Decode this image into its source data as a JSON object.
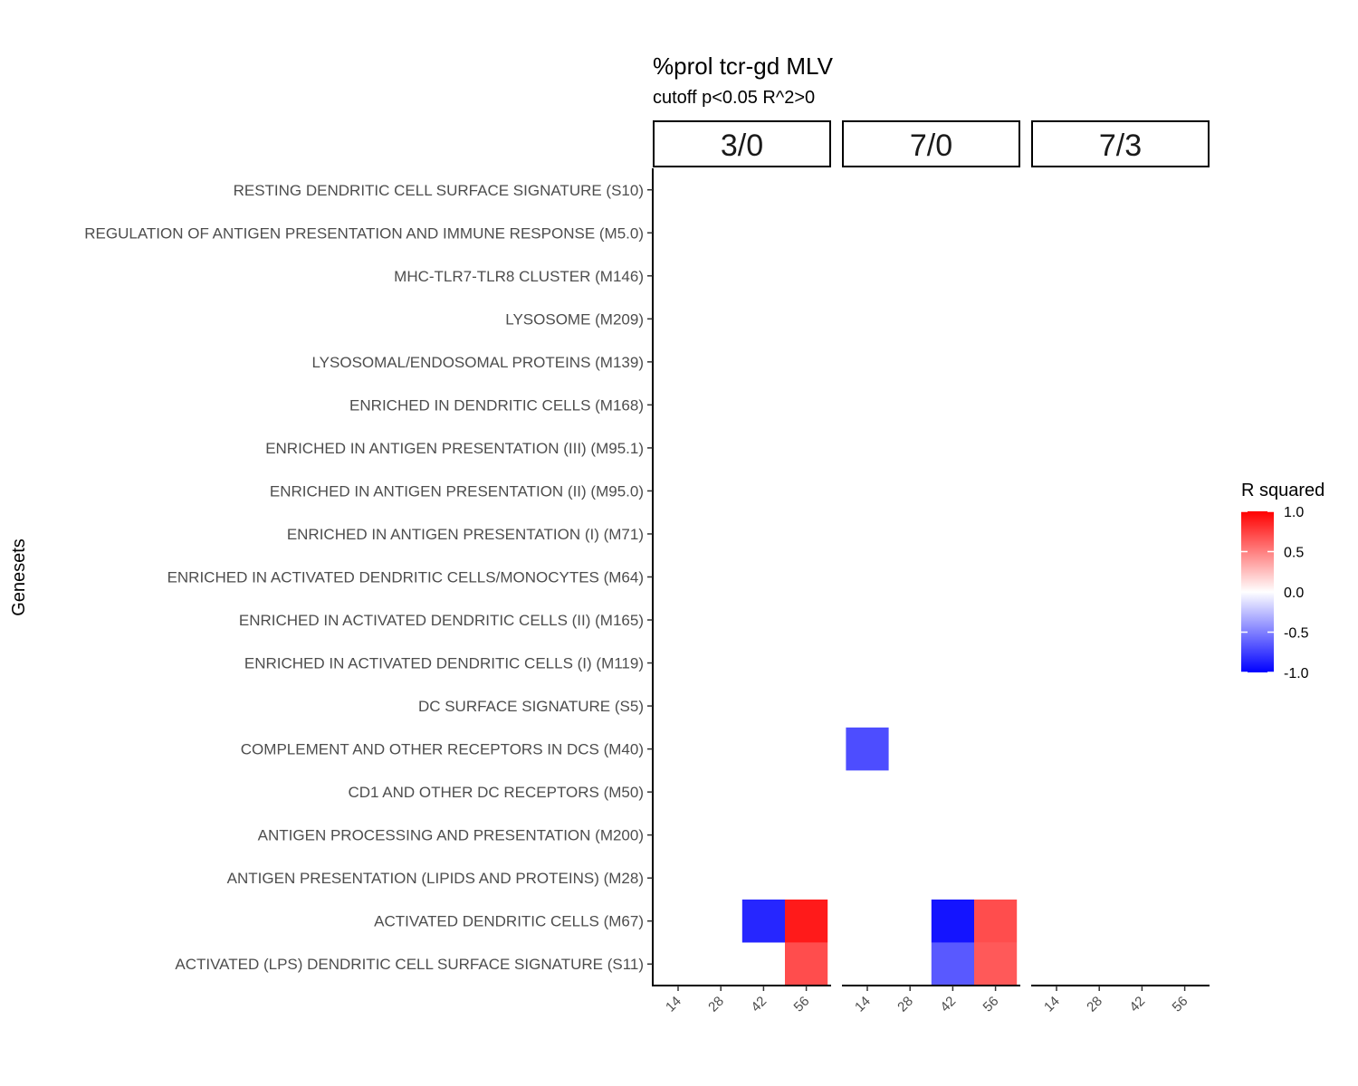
{
  "chart_data": {
    "type": "heatmap",
    "title": "%prol tcr-gd MLV",
    "subtitle": "cutoff p<0.05 R^2>0",
    "ylabel": "Genesets",
    "facets": [
      "3/0",
      "7/0",
      "7/3"
    ],
    "x_categories": [
      "14",
      "28",
      "42",
      "56"
    ],
    "y_categories": [
      "RESTING DENDRITIC CELL SURFACE SIGNATURE (S10)",
      "REGULATION OF ANTIGEN PRESENTATION AND IMMUNE RESPONSE (M5.0)",
      "MHC-TLR7-TLR8 CLUSTER (M146)",
      "LYSOSOME (M209)",
      "LYSOSOMAL/ENDOSOMAL PROTEINS (M139)",
      "ENRICHED IN DENDRITIC CELLS (M168)",
      "ENRICHED IN ANTIGEN PRESENTATION (III) (M95.1)",
      "ENRICHED IN ANTIGEN PRESENTATION (II) (M95.0)",
      "ENRICHED IN ANTIGEN PRESENTATION (I) (M71)",
      "ENRICHED IN ACTIVATED DENDRITIC CELLS/MONOCYTES (M64)",
      "ENRICHED IN ACTIVATED DENDRITIC CELLS (II) (M165)",
      "ENRICHED IN ACTIVATED DENDRITIC CELLS (I) (M119)",
      "DC SURFACE SIGNATURE (S5)",
      "COMPLEMENT AND OTHER RECEPTORS IN DCS (M40)",
      "CD1 AND OTHER DC RECEPTORS (M50)",
      "ANTIGEN PROCESSING AND PRESENTATION (M200)",
      "ANTIGEN PRESENTATION (LIPIDS AND PROTEINS) (M28)",
      "ACTIVATED DENDRITIC CELLS (M67)",
      "ACTIVATED (LPS) DENDRITIC CELL SURFACE SIGNATURE (S11)"
    ],
    "cells": [
      {
        "facet": "3/0",
        "x": "42",
        "y": "ACTIVATED DENDRITIC CELLS (M67)",
        "value": -0.85
      },
      {
        "facet": "3/0",
        "x": "56",
        "y": "ACTIVATED DENDRITIC CELLS (M67)",
        "value": 0.9
      },
      {
        "facet": "3/0",
        "x": "56",
        "y": "ACTIVATED (LPS) DENDRITIC CELL SURFACE SIGNATURE (S11)",
        "value": 0.7
      },
      {
        "facet": "7/0",
        "x": "14",
        "y": "COMPLEMENT AND OTHER RECEPTORS IN DCS (M40)",
        "value": -0.7
      },
      {
        "facet": "7/0",
        "x": "42",
        "y": "ACTIVATED DENDRITIC CELLS (M67)",
        "value": -0.92
      },
      {
        "facet": "7/0",
        "x": "56",
        "y": "ACTIVATED DENDRITIC CELLS (M67)",
        "value": 0.7
      },
      {
        "facet": "7/0",
        "x": "42",
        "y": "ACTIVATED (LPS) DENDRITIC CELL SURFACE SIGNATURE (S11)",
        "value": -0.65
      },
      {
        "facet": "7/0",
        "x": "56",
        "y": "ACTIVATED (LPS) DENDRITIC CELL SURFACE SIGNATURE (S11)",
        "value": 0.65
      }
    ],
    "legend": {
      "title": "R squared",
      "range": [
        -1.0,
        1.0
      ],
      "ticks": [
        "1.0",
        "0.5",
        "0.0",
        "-0.5",
        "-1.0"
      ],
      "tick_values": [
        1.0,
        0.5,
        0.0,
        -0.5,
        -1.0
      ],
      "colors": {
        "low": "#0000ff",
        "mid": "#ffffff",
        "high": "#ff0000"
      },
      "position": "right"
    },
    "grid": false
  }
}
